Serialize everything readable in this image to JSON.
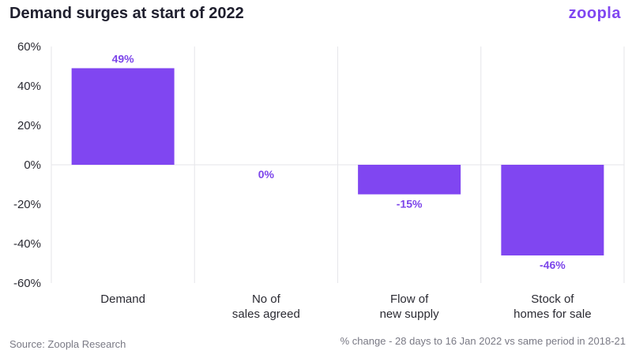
{
  "header": {
    "title": "Demand surges at start of 2022",
    "brand": "zoopla"
  },
  "footer": {
    "source": "Source: Zoopla Research",
    "note": "% change - 28 days to 16 Jan 2022 vs same period in 2018-21"
  },
  "colors": {
    "bar": "#8046f1",
    "label": "#7c45ea"
  },
  "chart_data": {
    "type": "bar",
    "title": "Demand surges at start of 2022",
    "categories": [
      [
        "Demand"
      ],
      [
        "No of",
        "sales agreed"
      ],
      [
        "Flow of",
        "new supply"
      ],
      [
        "Stock of",
        "homes for sale"
      ]
    ],
    "values": [
      49,
      0,
      -15,
      -46
    ],
    "data_labels": [
      "49%",
      "0%",
      "-15%",
      "-46%"
    ],
    "ylim": [
      -60,
      60
    ],
    "yticks": [
      60,
      40,
      20,
      0,
      -20,
      -40,
      -60
    ],
    "ytick_labels": [
      "60%",
      "40%",
      "20%",
      "0%",
      "-20%",
      "-40%",
      "-60%"
    ],
    "xlabel": "",
    "ylabel": "",
    "grid": "vertical separators"
  }
}
